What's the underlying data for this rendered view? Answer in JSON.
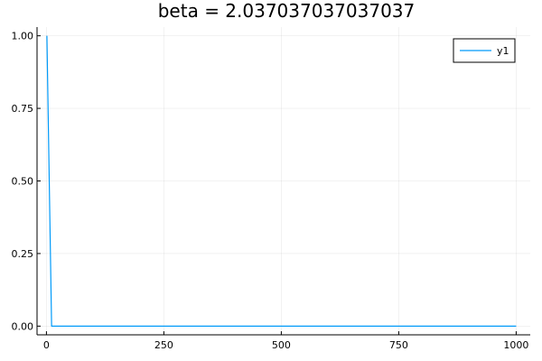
{
  "chart_data": {
    "type": "line",
    "title": "beta = 2.037037037037037",
    "xlabel": "",
    "ylabel": "",
    "xlim": [
      -20,
      1030
    ],
    "ylim": [
      -0.03,
      1.03
    ],
    "xticks": [
      0,
      250,
      500,
      750,
      1000
    ],
    "xtick_labels": [
      "0",
      "250",
      "500",
      "750",
      "1000"
    ],
    "yticks": [
      0.0,
      0.25,
      0.5,
      0.75,
      1.0
    ],
    "ytick_labels": [
      "0.00",
      "0.25",
      "0.50",
      "0.75",
      "1.00"
    ],
    "grid": true,
    "legend_position": "top-right",
    "series": [
      {
        "name": "y1",
        "color": "#009af9",
        "x": [
          1,
          11,
          21,
          100,
          250,
          500,
          750,
          1000
        ],
        "y": [
          1.0,
          0.0,
          0.0,
          0.0,
          0.0,
          0.0,
          0.0,
          0.0
        ]
      }
    ]
  }
}
